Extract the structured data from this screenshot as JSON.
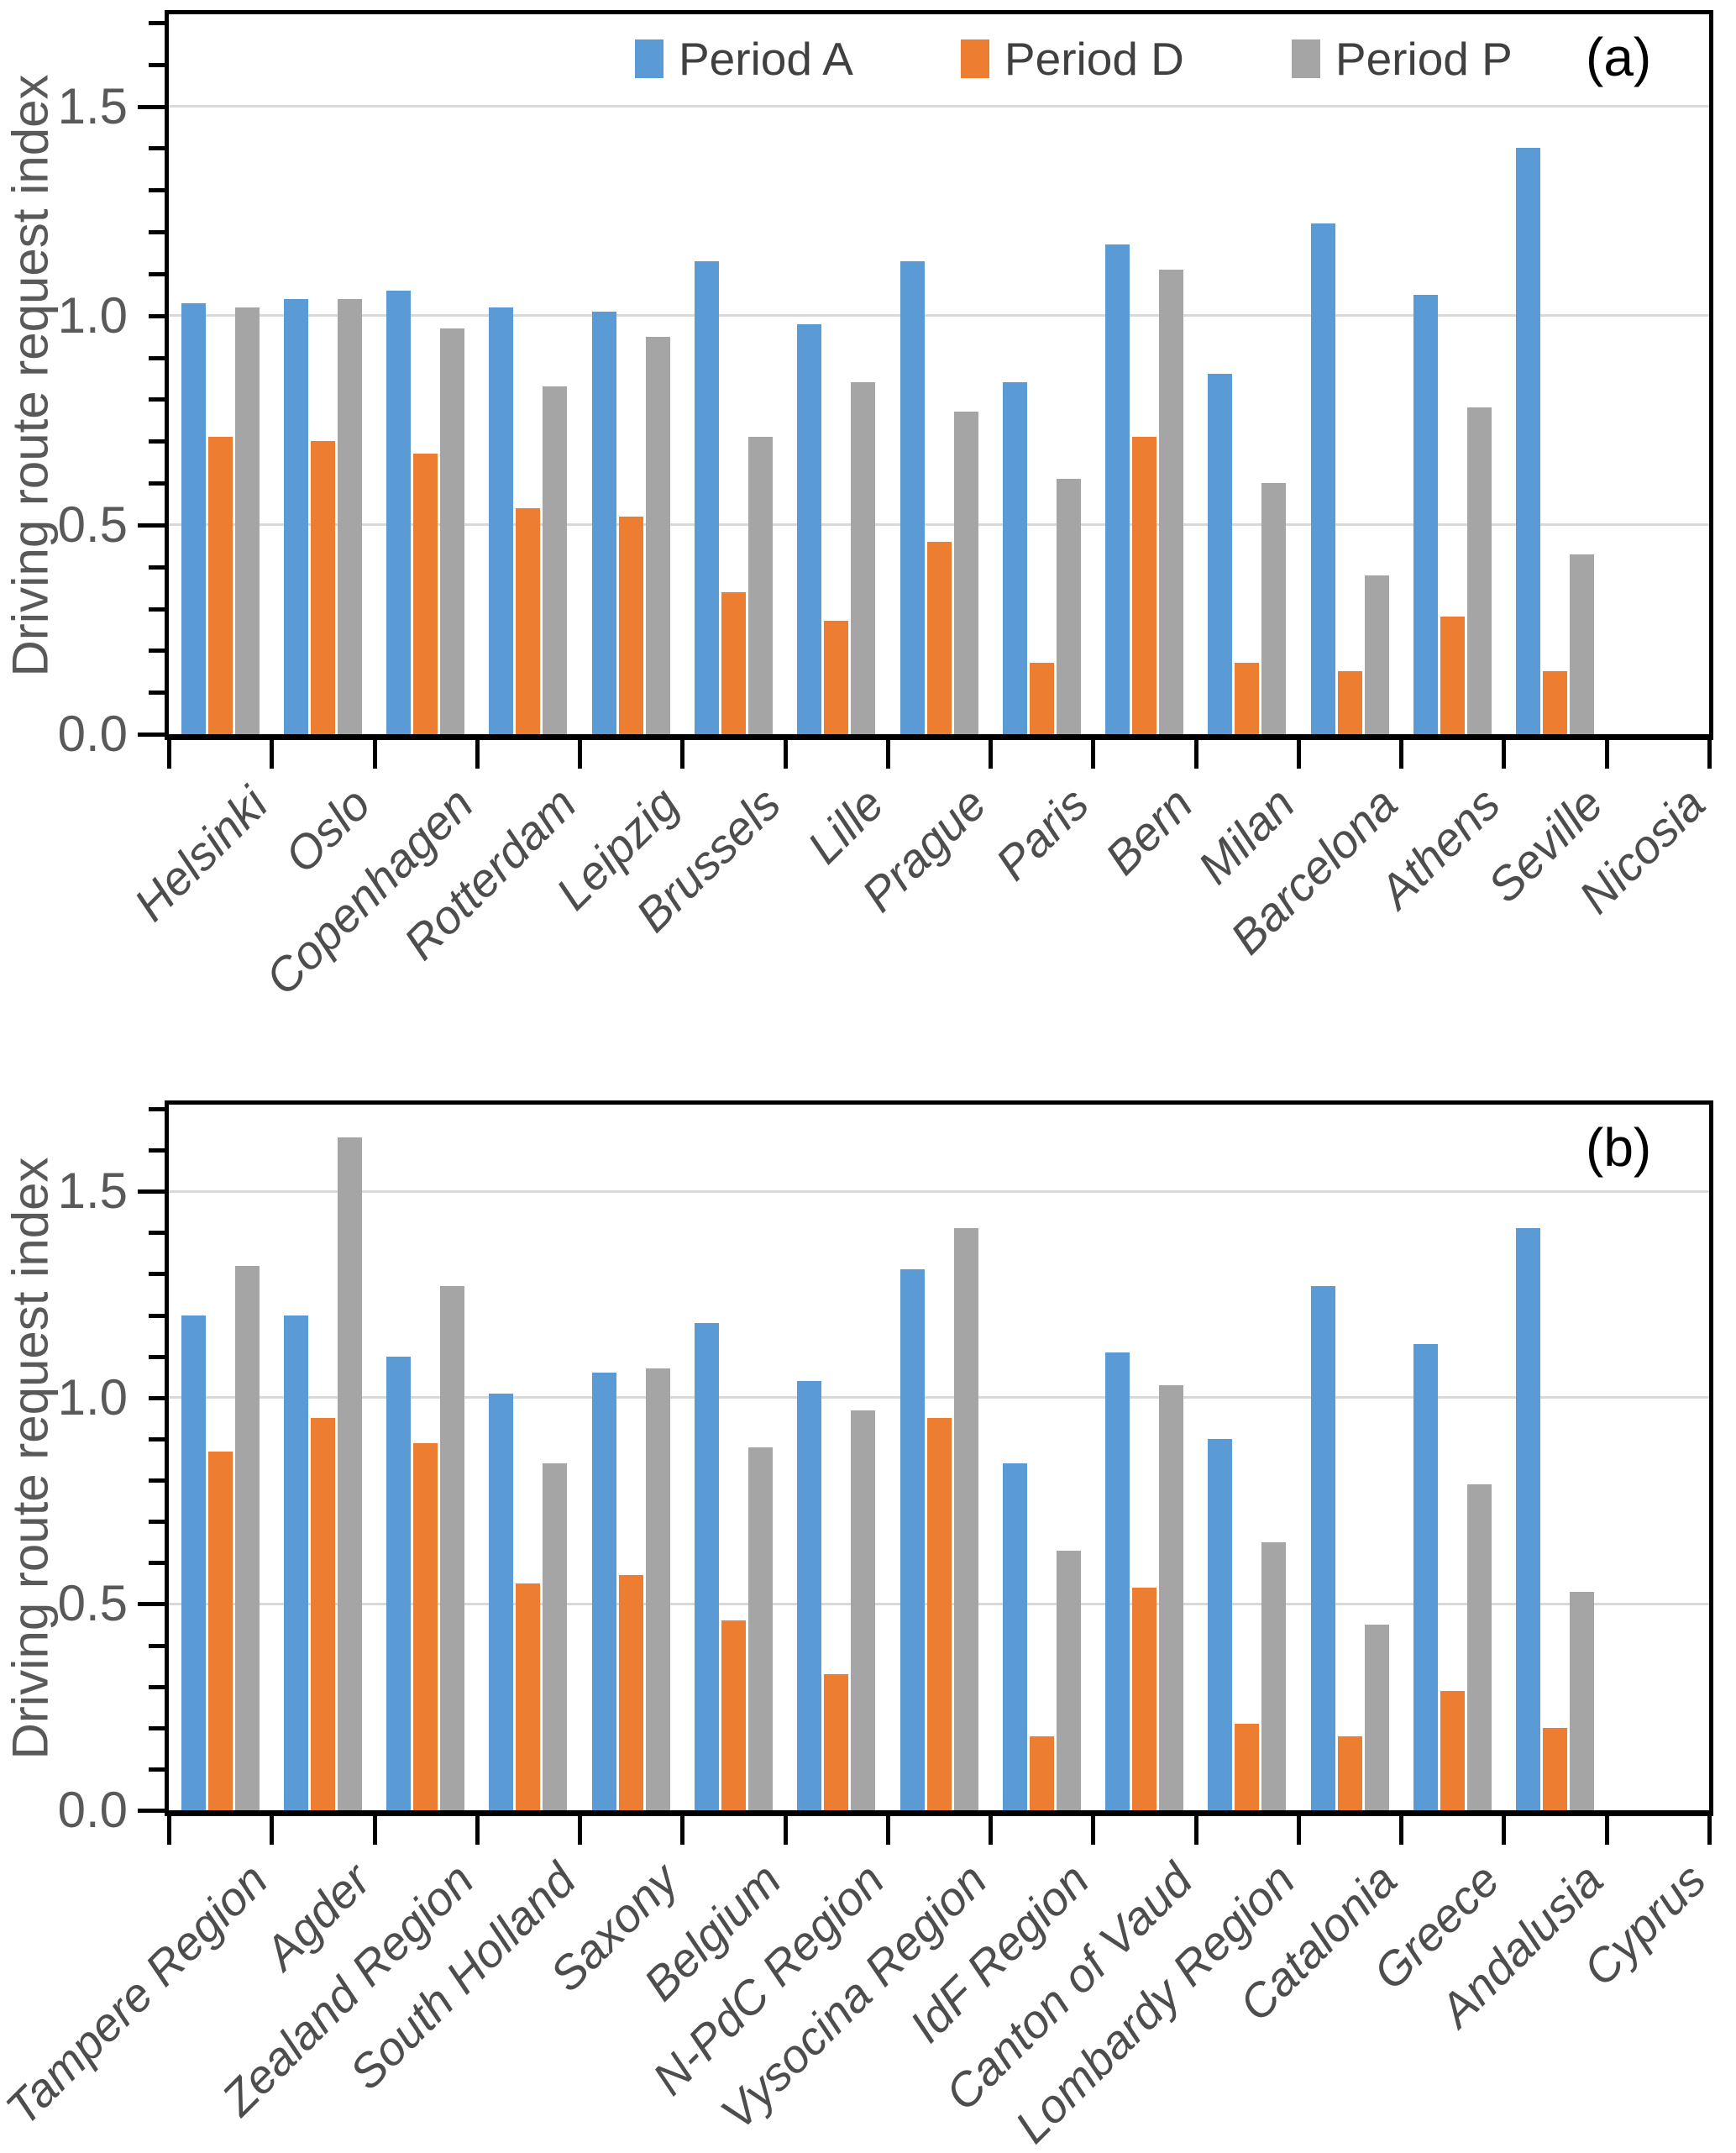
{
  "figure": {
    "y_axis_title": "Driving route request index",
    "y_tick_labels": [
      "0.0",
      "0.5",
      "1.0",
      "1.5"
    ],
    "colors": {
      "period_a_blue": "#5B9BD5",
      "period_d_orange": "#ED7D31",
      "period_p_gray": "#A5A5A5",
      "gridline": "#D9D9D9",
      "axis_line": "#000000",
      "tick_text": "#595959",
      "category_text": "#4D4D4D",
      "legend_text": "#404040",
      "panel_label_text": "#000000"
    },
    "legend": {
      "position": "top-center-inside-panel-a",
      "items": [
        {
          "label": "Period A",
          "color": "#5B9BD5"
        },
        {
          "label": "Period D",
          "color": "#ED7D31"
        },
        {
          "label": "Period P",
          "color": "#A5A5A5"
        }
      ]
    }
  },
  "chart_data": [
    {
      "type": "bar",
      "panel_label": "(a)",
      "ylabel": "Driving route request index",
      "xlabel": "",
      "ylim": [
        0,
        1.72
      ],
      "y_major_ticks": [
        0.0,
        0.5,
        1.0,
        1.5
      ],
      "y_minor_tick_step": 0.1,
      "grid": true,
      "legend_position": "top center inside",
      "categories": [
        "Helsinki",
        "Oslo",
        "Copenhagen",
        "Rotterdam",
        "Leipzig",
        "Brussels",
        "Lille",
        "Prague",
        "Paris",
        "Bern",
        "Milan",
        "Barcelona",
        "Athens",
        "Seville",
        "Nicosia"
      ],
      "series": [
        {
          "name": "Period A",
          "color": "#5B9BD5",
          "values": [
            1.03,
            1.04,
            1.06,
            1.02,
            1.01,
            1.13,
            0.98,
            1.13,
            0.84,
            1.17,
            0.86,
            1.22,
            1.05,
            1.4,
            0
          ]
        },
        {
          "name": "Period D",
          "color": "#ED7D31",
          "values": [
            0.71,
            0.7,
            0.67,
            0.54,
            0.52,
            0.34,
            0.27,
            0.46,
            0.17,
            0.71,
            0.17,
            0.15,
            0.28,
            0.15,
            0
          ]
        },
        {
          "name": "Period P",
          "color": "#A5A5A5",
          "values": [
            1.02,
            1.04,
            0.97,
            0.83,
            0.95,
            0.71,
            0.84,
            0.77,
            0.61,
            1.11,
            0.6,
            0.38,
            0.78,
            0.43,
            0
          ]
        }
      ]
    },
    {
      "type": "bar",
      "panel_label": "(b)",
      "ylabel": "Driving route request index",
      "xlabel": "",
      "ylim": [
        0,
        1.71
      ],
      "y_major_ticks": [
        0.0,
        0.5,
        1.0,
        1.5
      ],
      "y_minor_tick_step": 0.1,
      "grid": true,
      "legend_position": "none",
      "categories": [
        "Tampere Region",
        "Agder",
        "Zealand Region",
        "South Holland",
        "Saxony",
        "Belgium",
        "N-PdC Region",
        "Vysocina Region",
        "IdF Region",
        "Canton of Vaud",
        "Lombardy Region",
        "Catalonia",
        "Greece",
        "Andalusia",
        "Cyprus"
      ],
      "series": [
        {
          "name": "Period A",
          "color": "#5B9BD5",
          "values": [
            1.2,
            1.2,
            1.1,
            1.01,
            1.06,
            1.18,
            1.04,
            1.31,
            0.84,
            1.11,
            0.9,
            1.27,
            1.13,
            1.41,
            0
          ]
        },
        {
          "name": "Period D",
          "color": "#ED7D31",
          "values": [
            0.87,
            0.95,
            0.89,
            0.55,
            0.57,
            0.46,
            0.33,
            0.95,
            0.18,
            0.54,
            0.21,
            0.18,
            0.29,
            0.2,
            0
          ]
        },
        {
          "name": "Period P",
          "color": "#A5A5A5",
          "values": [
            1.32,
            1.63,
            1.27,
            0.84,
            1.07,
            0.88,
            0.97,
            1.41,
            0.63,
            1.03,
            0.65,
            0.45,
            0.79,
            0.53,
            0
          ]
        }
      ]
    }
  ]
}
